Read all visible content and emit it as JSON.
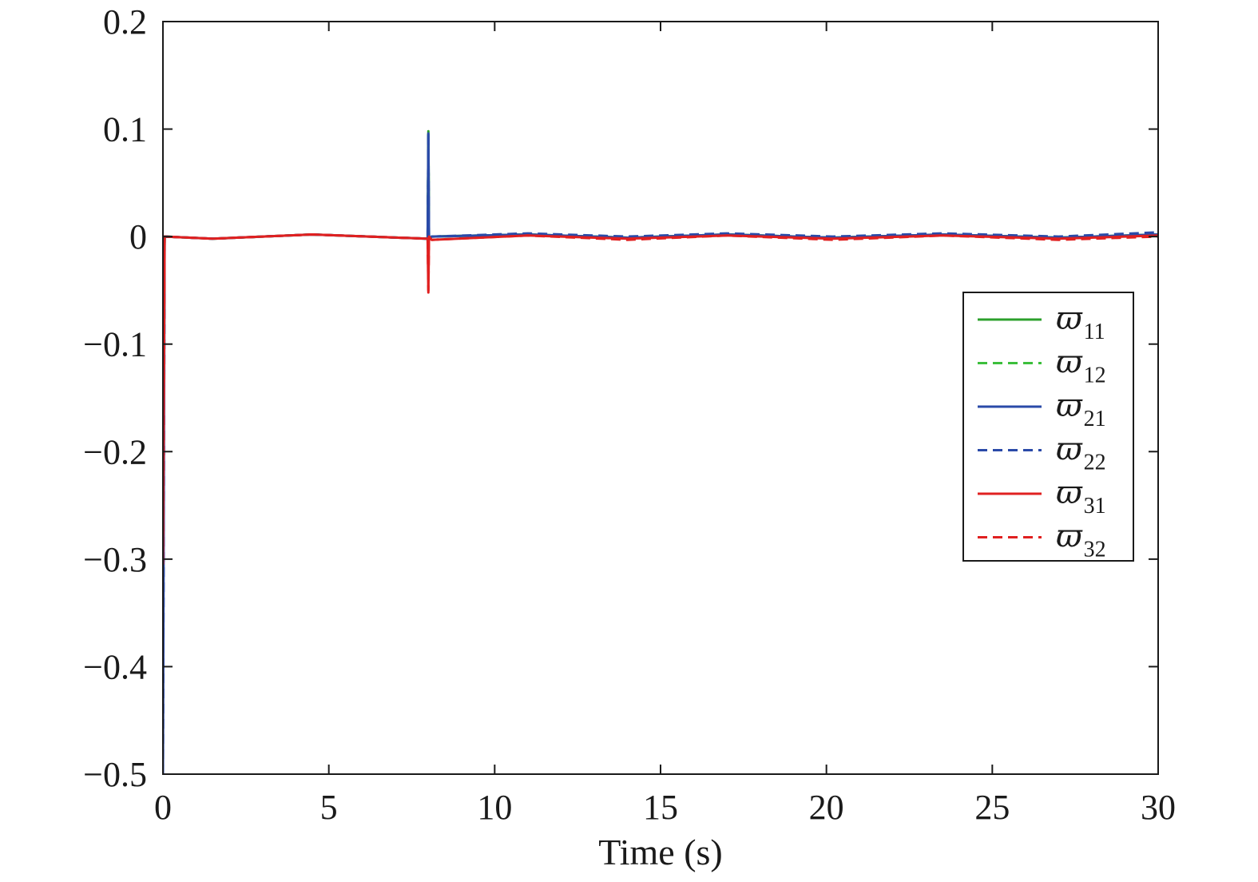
{
  "chart_data": {
    "type": "line",
    "title": "",
    "xlabel": "Time (s)",
    "ylabel": "",
    "xlim": [
      0,
      30
    ],
    "ylim": [
      -0.5,
      0.2
    ],
    "xticks": [
      0,
      5,
      10,
      15,
      20,
      25,
      30
    ],
    "xtick_labels": [
      "0",
      "5",
      "10",
      "15",
      "20",
      "25",
      "30"
    ],
    "yticks": [
      0.2,
      0.1,
      0,
      -0.1,
      -0.2,
      -0.3,
      -0.4,
      -0.5
    ],
    "ytick_labels": [
      "0.2",
      "0.1",
      "0",
      "−0.1",
      "−0.2",
      "−0.3",
      "−0.4",
      "−0.5"
    ],
    "grid": false,
    "legend_position": "right",
    "series": [
      {
        "name": "ϖ11",
        "symbol": "ϖ",
        "subscript": "11",
        "color": "#2ca02c",
        "dash": "solid",
        "x": [
          0,
          0.05,
          1.5,
          4.5,
          7.98,
          8.0,
          8.02,
          8.1,
          11,
          14,
          17,
          20.2,
          23.5,
          27,
          30
        ],
        "y": [
          -0.3,
          0.0,
          -0.002,
          0.002,
          -0.002,
          0.098,
          -0.003,
          0.0,
          0.002,
          -0.001,
          0.002,
          -0.001,
          0.002,
          -0.001,
          0.002
        ]
      },
      {
        "name": "ϖ12",
        "symbol": "ϖ",
        "subscript": "12",
        "color": "#3cbf3c",
        "dash": "dashed",
        "x": [
          0,
          0.05,
          1.5,
          4.5,
          7.98,
          8.0,
          8.02,
          8.1,
          11,
          14,
          17,
          20.2,
          23.5,
          27,
          30
        ],
        "y": [
          -0.3,
          0.0,
          -0.002,
          0.002,
          -0.002,
          0.095,
          -0.003,
          0.0,
          0.002,
          -0.001,
          0.002,
          -0.001,
          0.002,
          -0.001,
          0.002
        ]
      },
      {
        "name": "ϖ21",
        "symbol": "ϖ",
        "subscript": "21",
        "color": "#2a4aa8",
        "dash": "solid",
        "x": [
          0,
          0.05,
          1.5,
          4.5,
          7.98,
          8.0,
          8.02,
          8.1,
          11,
          14,
          17,
          20.2,
          23.5,
          27,
          30
        ],
        "y": [
          -0.5,
          0.0,
          -0.002,
          0.002,
          -0.002,
          0.096,
          -0.003,
          0.0,
          0.002,
          -0.001,
          0.002,
          -0.001,
          0.002,
          -0.001,
          0.002
        ]
      },
      {
        "name": "ϖ22",
        "symbol": "ϖ",
        "subscript": "22",
        "color": "#2a4aa8",
        "dash": "dashed",
        "x": [
          0,
          0.05,
          1.5,
          4.5,
          7.98,
          8.0,
          8.02,
          8.1,
          11,
          14,
          17,
          20.2,
          23.5,
          27,
          30
        ],
        "y": [
          -0.5,
          0.0,
          -0.002,
          0.002,
          -0.002,
          0.097,
          -0.002,
          0.0,
          0.003,
          0.0,
          0.003,
          0.0,
          0.003,
          0.0,
          0.004
        ]
      },
      {
        "name": "ϖ31",
        "symbol": "ϖ",
        "subscript": "31",
        "color": "#e02020",
        "dash": "solid",
        "x": [
          0,
          0.05,
          1.5,
          4.5,
          7.98,
          8.0,
          8.02,
          8.1,
          11,
          14,
          17,
          20.2,
          23.5,
          27,
          30
        ],
        "y": [
          -0.305,
          0.0,
          -0.002,
          0.002,
          -0.002,
          -0.052,
          0.0,
          -0.003,
          0.001,
          -0.002,
          0.001,
          -0.002,
          0.001,
          -0.002,
          0.001
        ]
      },
      {
        "name": "ϖ32",
        "symbol": "ϖ",
        "subscript": "32",
        "color": "#e02020",
        "dash": "dashed",
        "x": [
          0,
          0.05,
          1.5,
          4.5,
          7.98,
          8.0,
          8.02,
          8.1,
          11,
          14,
          17,
          20.2,
          23.5,
          27,
          30
        ],
        "y": [
          -0.305,
          0.0,
          -0.002,
          0.002,
          -0.002,
          -0.05,
          0.0,
          -0.003,
          0.001,
          -0.003,
          0.001,
          -0.003,
          0.001,
          -0.003,
          0.0
        ]
      }
    ]
  }
}
